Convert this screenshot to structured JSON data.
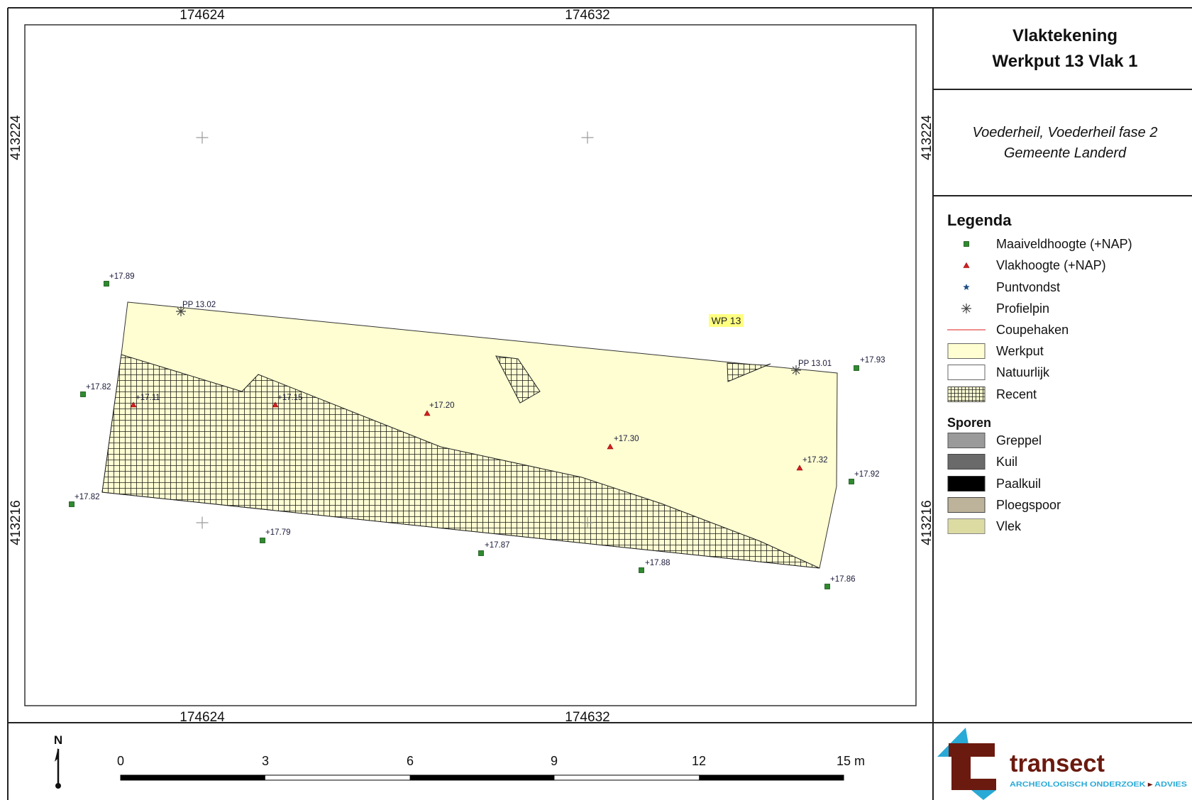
{
  "map": {
    "coord_labels": {
      "top": [
        "174624",
        "174632"
      ],
      "bottom": [
        "174624",
        "174632"
      ],
      "left": [
        "413224",
        "413216"
      ],
      "right": [
        "413224",
        "413216"
      ]
    },
    "feature_label": "WP 13",
    "feature_label_color": "#ffff80",
    "profile_pins": [
      "PP 13.02",
      "PP 13.01"
    ],
    "surface_levels": [
      "+17.89",
      "+17.82",
      "+17.82",
      "+17.79",
      "+17.87",
      "+17.88",
      "+17.86",
      "+17.92",
      "+17.93"
    ],
    "plane_levels": [
      "+17.11",
      "+17.15",
      "+17.20",
      "+17.30",
      "+17.32"
    ]
  },
  "title": {
    "line1": "Vlaktekening",
    "line2": "Werkput 13 Vlak 1"
  },
  "subtitle": {
    "line1": "Voederheil, Voederheil fase 2",
    "line2": "Gemeente Landerd"
  },
  "legend": {
    "heading": "Legenda",
    "items": [
      {
        "label": "Maaiveldhoogte (+NAP)",
        "icon": "green-square",
        "color": "#2f8a2f"
      },
      {
        "label": "Vlakhoogte (+NAP)",
        "icon": "red-triangle",
        "color": "#d42020"
      },
      {
        "label": "Puntvondst",
        "icon": "blue-star",
        "color": "#1c4f86"
      },
      {
        "label": "Profielpin",
        "icon": "asterisk",
        "color": "#444444"
      },
      {
        "label": "Coupehaken",
        "icon": "red-line",
        "color": "#e86a6a"
      },
      {
        "label": "Werkput",
        "icon": "swatch",
        "color": "#fefed2"
      },
      {
        "label": "Natuurlijk",
        "icon": "swatch",
        "color": "#ffffff"
      },
      {
        "label": "Recent",
        "icon": "hatch-swatch",
        "color": "#fefed2"
      }
    ],
    "sporen_heading": "Sporen",
    "sporen": [
      {
        "label": "Greppel",
        "color": "#9a9a9a"
      },
      {
        "label": "Kuil",
        "color": "#6a6a6a"
      },
      {
        "label": "Paalkuil",
        "color": "#000000"
      },
      {
        "label": "Ploegspoor",
        "color": "#bdb39a"
      },
      {
        "label": "Vlek",
        "color": "#dcdba2"
      }
    ]
  },
  "scale_bar": {
    "labels": [
      "0",
      "3",
      "6",
      "9",
      "12",
      "15 m"
    ]
  },
  "north_arrow": {
    "label": "N"
  },
  "logo": {
    "name": "transect",
    "tagline_part1": "ARCHEOLOGISCH ONDERZOEK",
    "tagline_sep": "▸",
    "tagline_part2": "ADVIES",
    "brand_color": "#6b1a0f",
    "accent_color": "#29a9d6"
  }
}
